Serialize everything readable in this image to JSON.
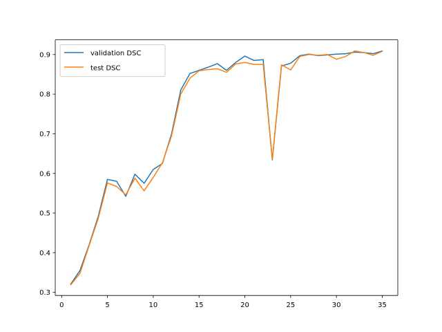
{
  "chart_data": {
    "type": "line",
    "title": "",
    "xlabel": "",
    "ylabel": "",
    "xlim": [
      -0.7,
      36.7
    ],
    "ylim": [
      0.292,
      0.937
    ],
    "xticks": [
      0,
      5,
      10,
      15,
      20,
      25,
      30,
      35
    ],
    "yticks": [
      0.3,
      0.4,
      0.5,
      0.6,
      0.7,
      0.8,
      0.9
    ],
    "xtick_labels": [
      "0",
      "5",
      "10",
      "15",
      "20",
      "25",
      "30",
      "35"
    ],
    "ytick_labels": [
      "0.3",
      "0.4",
      "0.5",
      "0.6",
      "0.7",
      "0.8",
      "0.9"
    ],
    "grid": false,
    "legend_position": "top-left",
    "x": [
      1,
      2,
      3,
      4,
      5,
      6,
      7,
      8,
      9,
      10,
      11,
      12,
      13,
      14,
      15,
      16,
      17,
      18,
      19,
      20,
      21,
      22,
      23,
      24,
      25,
      26,
      27,
      28,
      29,
      30,
      31,
      32,
      33,
      34,
      35
    ],
    "series": [
      {
        "name": "validation DSC",
        "color": "#1f77b4",
        "values": [
          0.321,
          0.355,
          0.42,
          0.492,
          0.585,
          0.58,
          0.542,
          0.598,
          0.575,
          0.61,
          0.625,
          0.7,
          0.81,
          0.852,
          0.86,
          0.868,
          0.877,
          0.86,
          0.88,
          0.896,
          0.885,
          0.887,
          0.634,
          0.871,
          0.878,
          0.897,
          0.901,
          0.897,
          0.899,
          0.901,
          0.902,
          0.906,
          0.905,
          0.902,
          0.909
        ]
      },
      {
        "name": "test DSC",
        "color": "#ff7f0e",
        "values": [
          0.319,
          0.348,
          0.418,
          0.487,
          0.576,
          0.567,
          0.546,
          0.588,
          0.556,
          0.59,
          0.627,
          0.695,
          0.8,
          0.84,
          0.859,
          0.862,
          0.864,
          0.855,
          0.876,
          0.88,
          0.875,
          0.875,
          0.636,
          0.874,
          0.861,
          0.895,
          0.9,
          0.898,
          0.9,
          0.888,
          0.895,
          0.909,
          0.905,
          0.898,
          0.908
        ]
      }
    ]
  }
}
